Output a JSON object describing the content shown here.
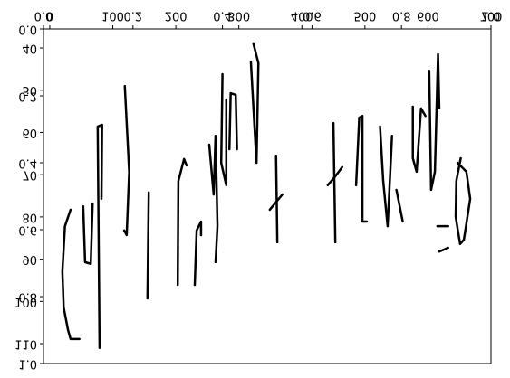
{
  "chart_data": {
    "type": "line",
    "color": "#000000",
    "xlim": [
      -10,
      700
    ],
    "ylim": [
      35.5,
      114.7
    ],
    "xticks": [
      0,
      100,
      200,
      300,
      400,
      500,
      600,
      700
    ],
    "yticks": [
      40,
      50,
      60,
      70,
      80,
      90,
      100,
      110
    ],
    "overlay_lim": [
      0,
      1
    ],
    "overlay_ticks": [
      {
        "value": 0,
        "label": "0.0"
      },
      {
        "value": 0.2,
        "label": "0.2"
      },
      {
        "value": 0.4,
        "label": "0.4"
      },
      {
        "value": 0.6,
        "label": "0.6"
      },
      {
        "value": 0.8,
        "label": "0.8"
      },
      {
        "value": 1,
        "label": "1.0"
      }
    ],
    "series": [
      {
        "x": [
          33,
          24,
          20,
          22,
          29,
          33,
          47
        ],
        "values": [
          78.3,
          82.2,
          92.9,
          101.4,
          106.8,
          108.9,
          108.9
        ]
      },
      {
        "x": [
          53,
          56,
          65,
          68
        ],
        "values": [
          77.5,
          90.7,
          91.1,
          76.8
        ]
      },
      {
        "x": [
          79,
          76,
          83,
          82
        ],
        "values": [
          111.0,
          58.6,
          58.2,
          75.7
        ]
      },
      {
        "x": [
          119,
          126,
          122,
          118
        ],
        "values": [
          49.0,
          69.3,
          84.3,
          83.2
        ]
      },
      {
        "x": [
          157,
          155
        ],
        "values": [
          74.2,
          99.3
        ]
      },
      {
        "x": [
          203,
          204,
          213,
          217
        ],
        "values": [
          96.1,
          71.5,
          66.3,
          67.8
        ]
      },
      {
        "x": [
          230,
          233,
          240,
          240
        ],
        "values": [
          96.1,
          83.2,
          81.1,
          84.3
        ]
      },
      {
        "x": [
          253,
          260,
          263,
          266,
          263
        ],
        "values": [
          62.9,
          74.7,
          60.8,
          82.2,
          90.7
        ]
      },
      {
        "x": [
          274,
          272,
          280,
          280
        ],
        "values": [
          46.2,
          67.2,
          72.5,
          52.2
        ]
      },
      {
        "x": [
          285,
          287,
          295,
          297
        ],
        "values": [
          64.0,
          50.7,
          51.1,
          64.0
        ]
      },
      {
        "x": [
          323,
          331,
          328,
          319
        ],
        "values": [
          38.9,
          43.6,
          67.2,
          43.2
        ]
      },
      {
        "x": [
          359,
          361
        ],
        "values": [
          65.5,
          86.0
        ]
      },
      {
        "x": [
          349,
          369
        ],
        "values": [
          78.3,
          74.7
        ]
      },
      {
        "x": [
          441,
          453,
          464
        ],
        "values": [
          72.5,
          70.4,
          68.2
        ]
      },
      {
        "x": [
          450,
          453
        ],
        "values": [
          57.8,
          86.0
        ]
      },
      {
        "x": [
          486,
          491,
          496,
          496,
          503
        ],
        "values": [
          72.5,
          56.5,
          56.1,
          81.1,
          81.1
        ]
      },
      {
        "x": [
          524,
          529,
          536,
          543
        ],
        "values": [
          58.6,
          71.5,
          82.2,
          60.8
        ]
      },
      {
        "x": [
          550,
          560
        ],
        "values": [
          73.6,
          81.1
        ]
      },
      {
        "x": [
          576,
          576,
          582,
          589,
          596
        ],
        "values": [
          53.9,
          66.1,
          69.3,
          54.3,
          56.1
        ]
      },
      {
        "x": [
          602,
          605,
          611,
          616,
          618
        ],
        "values": [
          45.4,
          73.6,
          69.3,
          41.5,
          54.3
        ]
      },
      {
        "x": [
          647,
          661,
          667,
          657,
          651,
          644,
          645,
          652
        ],
        "values": [
          67.2,
          69.3,
          75.7,
          85.4,
          86.4,
          80.0,
          71.5,
          66.1
        ]
      },
      {
        "x": [
          615,
          632
        ],
        "values": [
          82.2,
          82.2
        ]
      },
      {
        "x": [
          618,
          632
        ],
        "values": [
          88.2,
          87.3
        ]
      }
    ]
  }
}
